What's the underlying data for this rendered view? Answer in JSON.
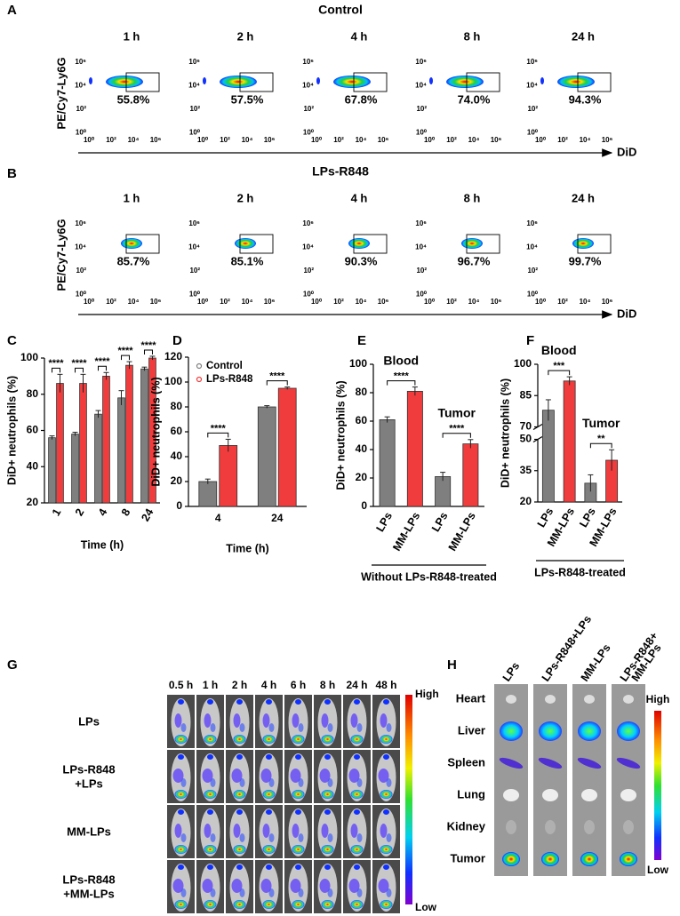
{
  "panel_labels": [
    "A",
    "B",
    "C",
    "D",
    "E",
    "F",
    "G",
    "H"
  ],
  "flow_axes": {
    "ylabel": "PE/Cy7-Ly6G",
    "xlabel": "DiD",
    "xticks": [
      "10⁰",
      "10²",
      "10⁴",
      "10⁶"
    ],
    "yticks": [
      "10⁶",
      "10⁴",
      "10²",
      "10⁰"
    ]
  },
  "flow": [
    {
      "title": "Control",
      "times": [
        "1 h",
        "2 h",
        "4 h",
        "8 h",
        "24 h"
      ],
      "percentages": [
        "55.8%",
        "57.5%",
        "67.8%",
        "74.0%",
        "94.3%"
      ]
    },
    {
      "title": "LPs-R848",
      "times": [
        "1 h",
        "2 h",
        "4 h",
        "8 h",
        "24 h"
      ],
      "percentages": [
        "85.7%",
        "85.1%",
        "90.3%",
        "96.7%",
        "99.7%"
      ]
    }
  ],
  "chart_data": [
    {
      "type": "bar",
      "ylabel": "DiD+ neutrophils (%)",
      "xlabel": "Time (h)",
      "categories": [
        "1",
        "2",
        "4",
        "8",
        "24"
      ],
      "series": [
        {
          "color": "#7f7f7f",
          "values": [
            56,
            58,
            69,
            78,
            94
          ],
          "errors": [
            1,
            1,
            2,
            4,
            1
          ]
        },
        {
          "color": "#f03c3c",
          "values": [
            86,
            86,
            90,
            96,
            100
          ],
          "errors": [
            5,
            5,
            2,
            2,
            1
          ]
        }
      ],
      "significance": [
        "****",
        "****",
        "****",
        "****",
        "****"
      ],
      "ylim": [
        20,
        100
      ],
      "yticks": [
        20,
        40,
        60,
        80,
        100
      ]
    },
    {
      "type": "bar",
      "ylabel": "DiD+ neutrophils (%)",
      "xlabel": "Time (h)",
      "categories": [
        "4",
        "24"
      ],
      "series": [
        {
          "name": "Control",
          "color": "#7f7f7f",
          "values": [
            20,
            80
          ],
          "errors": [
            2,
            1
          ]
        },
        {
          "name": "LPs-R848",
          "color": "#f03c3c",
          "values": [
            49,
            95
          ],
          "errors": [
            5,
            1
          ]
        }
      ],
      "significance": [
        "****",
        "****"
      ],
      "ylim": [
        0,
        120
      ],
      "yticks": [
        0,
        20,
        40,
        60,
        80,
        100,
        120
      ]
    },
    {
      "type": "bar",
      "ylabel": "DiD+ neutrophils (%)",
      "xlabel": "Without LPs-R848-treated",
      "categories": [
        "LPs",
        "MM-LPs",
        "LPs",
        "MM-LPs"
      ],
      "values": [
        61,
        81,
        21,
        44
      ],
      "errors": [
        2,
        3,
        3,
        3
      ],
      "colors": [
        "#7f7f7f",
        "#f03c3c",
        "#7f7f7f",
        "#f03c3c"
      ],
      "significance": [
        "****",
        "****"
      ],
      "annotations": [
        "Blood",
        "Tumor"
      ],
      "ylim": [
        0,
        100
      ],
      "yticks": [
        0,
        20,
        40,
        60,
        80,
        100
      ]
    },
    {
      "type": "bar",
      "ylabel": "DiD+ neutrophils (%)",
      "xlabel": "LPs-R848-treated",
      "categories": [
        "LPs",
        "MM-LPs",
        "LPs",
        "MM-LPs"
      ],
      "values": [
        78,
        92,
        29,
        40
      ],
      "errors": [
        5,
        2,
        4,
        5
      ],
      "colors": [
        "#7f7f7f",
        "#f03c3c",
        "#7f7f7f",
        "#f03c3c"
      ],
      "significance": [
        "***",
        "**"
      ],
      "annotations": [
        "Blood",
        "Tumor"
      ],
      "ylim": [
        20,
        100
      ],
      "axis_break": [
        50,
        70
      ],
      "yticks": [
        20,
        35,
        50,
        70,
        85,
        100
      ]
    }
  ],
  "imaging": {
    "times": [
      "0.5 h",
      "1 h",
      "2 h",
      "4 h",
      "6 h",
      "8 h",
      "24 h",
      "48 h"
    ],
    "groups": [
      [
        "LPs"
      ],
      [
        "LPs-R848",
        "+LPs"
      ],
      [
        "MM-LPs"
      ],
      [
        "LPs-R848",
        "+MM-LPs"
      ]
    ],
    "scale": [
      "High",
      "Low"
    ]
  },
  "organs": {
    "groups": [
      [
        "LPs"
      ],
      [
        "LPs-R848+LPs"
      ],
      [
        "MM-LPs"
      ],
      [
        "LPs-R848+",
        "MM-LPs"
      ]
    ],
    "rows": [
      "Heart",
      "Liver",
      "Spleen",
      "Lung",
      "Kidney",
      "Tumor"
    ],
    "scale": [
      "High",
      "Low"
    ]
  }
}
